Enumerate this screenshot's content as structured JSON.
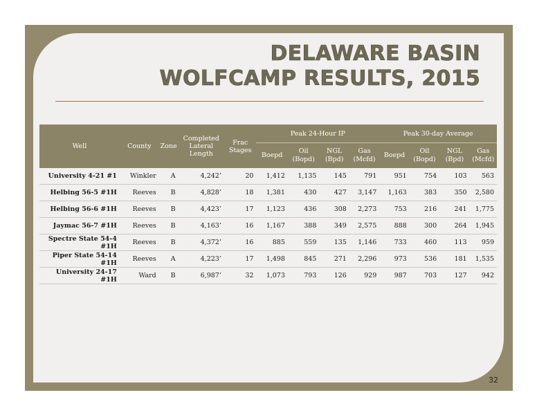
{
  "title": {
    "line1": "DELAWARE BASIN",
    "line2": "WOLFCAMP RESULTS, 2015"
  },
  "table": {
    "headers": {
      "well": "Well",
      "county": "County",
      "zone": "Zone",
      "lateral": "Completed Lateral Length",
      "stages": "Frac Stages",
      "peak24": "Peak 24-Hour IP",
      "peak30": "Peak 30-day Average",
      "boepd": "Boepd",
      "oil": "Oil (Bopd)",
      "ngl": "NGL (Bpd)",
      "gas": "Gas (Mcfd)"
    },
    "rows": [
      [
        "University 4-21 #1",
        "Winkler",
        "A",
        "4,242’",
        "20",
        "1,412",
        "1,135",
        "145",
        "791",
        "951",
        "754",
        "103",
        "563"
      ],
      [
        "Helbing 56-5 #1H",
        "Reeves",
        "B",
        "4,828’",
        "18",
        "1,381",
        "430",
        "427",
        "3,147",
        "1,163",
        "383",
        "350",
        "2,580"
      ],
      [
        "Helbing 56-6 #1H",
        "Reeves",
        "B",
        "4,423’",
        "17",
        "1,123",
        "436",
        "308",
        "2,273",
        "753",
        "216",
        "241",
        "1,775"
      ],
      [
        "Jaymac 56-7 #1H",
        "Reeves",
        "B",
        "4,163’",
        "16",
        "1,167",
        "388",
        "349",
        "2,575",
        "888",
        "300",
        "264",
        "1,945"
      ],
      [
        "Spectre State 54-4 #1H",
        "Reeves",
        "B",
        "4,372’",
        "16",
        "885",
        "559",
        "135",
        "1,146",
        "733",
        "460",
        "113",
        "959"
      ],
      [
        "Piper State 54-14 #1H",
        "Reeves",
        "A",
        "4,223’",
        "17",
        "1,498",
        "845",
        "271",
        "2,296",
        "973",
        "536",
        "181",
        "1,535"
      ],
      [
        "University 24-17 #1H",
        "Ward",
        "B",
        "6,987’",
        "32",
        "1,073",
        "793",
        "126",
        "929",
        "987",
        "703",
        "127",
        "942"
      ]
    ]
  },
  "page_number": "32"
}
